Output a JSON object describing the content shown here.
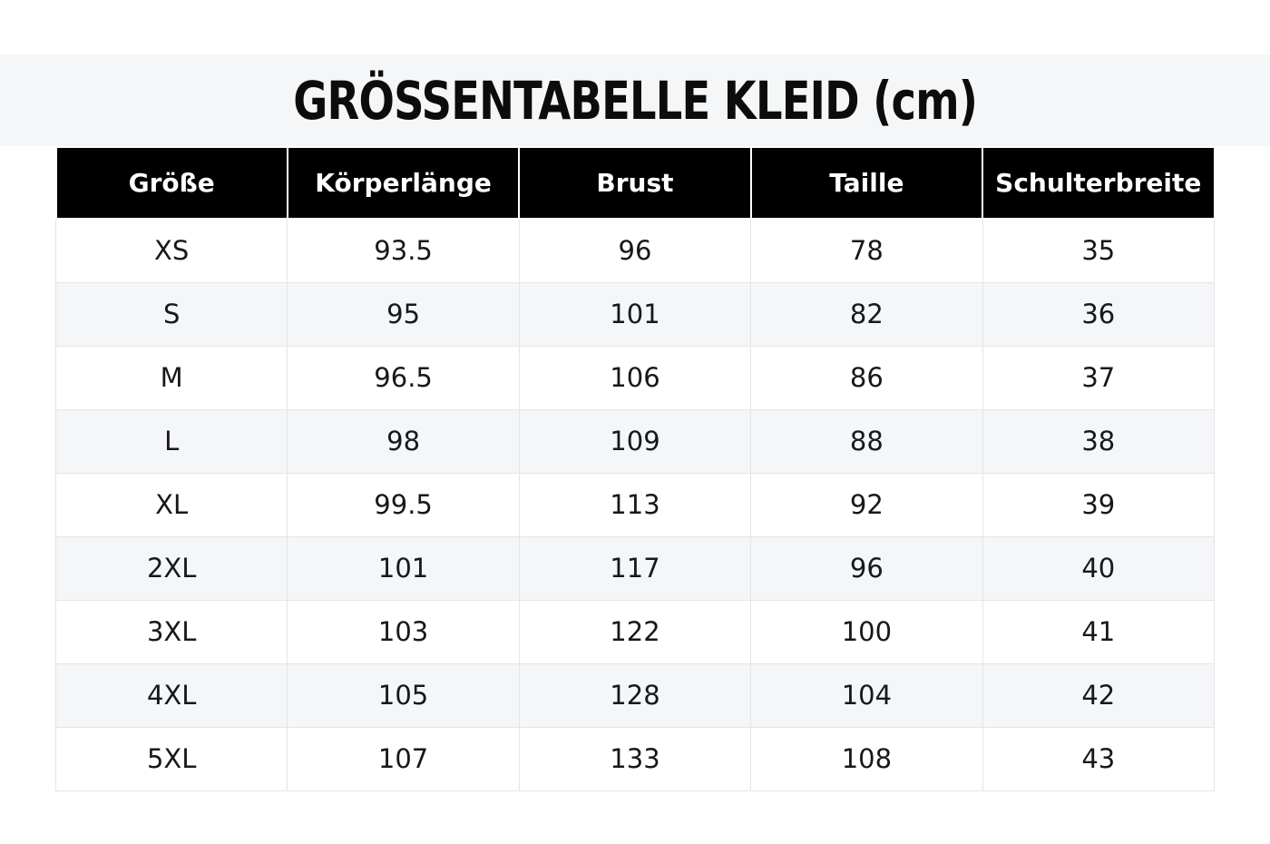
{
  "title": "GRÖSSENTABELLE KLEID (cm)",
  "unit": "cm",
  "colors": {
    "header_bg": "#000000",
    "header_text": "#ffffff",
    "title_band_bg": "#f5f6f8",
    "row_alt_bg": "#f5f6f8",
    "border": "#e3e5e8",
    "body_text": "#16181c",
    "title_text": "#0c0c0c"
  },
  "table": {
    "columns": [
      "Größe",
      "Körperlänge",
      "Brust",
      "Taille",
      "Schulterbreite"
    ],
    "rows": [
      [
        "XS",
        "93.5",
        "96",
        "78",
        "35"
      ],
      [
        "S",
        "95",
        "101",
        "82",
        "36"
      ],
      [
        "M",
        "96.5",
        "106",
        "86",
        "37"
      ],
      [
        "L",
        "98",
        "109",
        "88",
        "38"
      ],
      [
        "XL",
        "99.5",
        "113",
        "92",
        "39"
      ],
      [
        "2XL",
        "101",
        "117",
        "96",
        "40"
      ],
      [
        "3XL",
        "103",
        "122",
        "100",
        "41"
      ],
      [
        "4XL",
        "105",
        "128",
        "104",
        "42"
      ],
      [
        "5XL",
        "107",
        "133",
        "108",
        "43"
      ]
    ]
  }
}
